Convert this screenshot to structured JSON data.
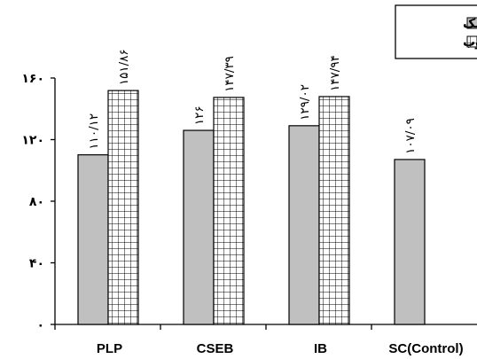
{
  "chart_data": {
    "type": "bar",
    "categories": [
      "PLP",
      "CSEB",
      "IB",
      "SC(Control)"
    ],
    "series": [
      {
        "name": "خشک",
        "values": [
          110.12,
          126,
          129.02,
          107.09
        ],
        "labels": [
          "۱۱۰/۱۲",
          "۱۲۶",
          "۱۲۹/۰۲",
          "۱۰۷/۰۹"
        ],
        "pattern": "solid",
        "color": "#c0c0c0"
      },
      {
        "name": "مرطوب",
        "values": [
          151.86,
          147.39,
          147.94,
          null
        ],
        "labels": [
          "۱۵۱/۸۶",
          "۱۴۷/۳۹",
          "۱۴۷/۹۴",
          ""
        ],
        "pattern": "grid",
        "color": "#ffffff"
      }
    ],
    "ylim": [
      0,
      160
    ],
    "yticks": [
      0,
      40,
      80,
      120,
      160
    ],
    "ytick_labels": [
      "۰",
      "۴۰",
      "۸۰",
      "۱۲۰",
      "۱۶۰"
    ],
    "legend_position": "top-right",
    "grid": false
  }
}
